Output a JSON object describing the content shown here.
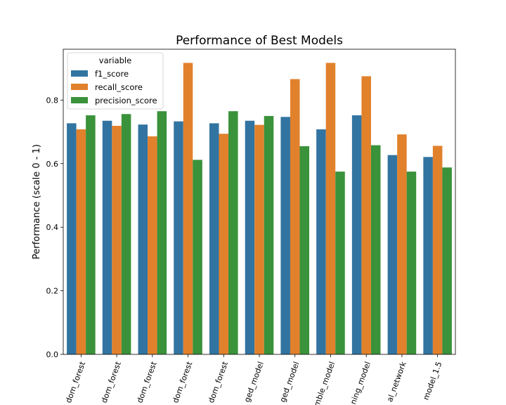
{
  "chart_data": {
    "type": "bar",
    "title": "Performance of Best Models",
    "xlabel": "",
    "ylabel": "Performance (scale 0 - 1)",
    "ylim": [
      0,
      0.96
    ],
    "yticks": [
      "0.0",
      "0.2",
      "0.4",
      "0.6",
      "0.8"
    ],
    "categories": [
      "dom_forest",
      "dom_forest",
      "dom_forest",
      "dom_forest",
      "dom_forest",
      "ged_model",
      "ged_model",
      "mble_model",
      "ning_model",
      "al_network",
      "model_1.5"
    ],
    "series": [
      {
        "name": "f1_score",
        "color": "#3274a1",
        "values": [
          0.727,
          0.735,
          0.723,
          0.733,
          0.727,
          0.735,
          0.747,
          0.708,
          0.752,
          0.627,
          0.621
        ]
      },
      {
        "name": "recall_score",
        "color": "#e1812c",
        "values": [
          0.708,
          0.719,
          0.686,
          0.917,
          0.694,
          0.722,
          0.866,
          0.917,
          0.875,
          0.692,
          0.656
        ]
      },
      {
        "name": "precision_score",
        "color": "#3a923a",
        "values": [
          0.752,
          0.756,
          0.765,
          0.612,
          0.765,
          0.75,
          0.655,
          0.575,
          0.658,
          0.575,
          0.588
        ]
      }
    ],
    "legend": {
      "title": "variable",
      "position": "top-left"
    },
    "grid": false
  }
}
